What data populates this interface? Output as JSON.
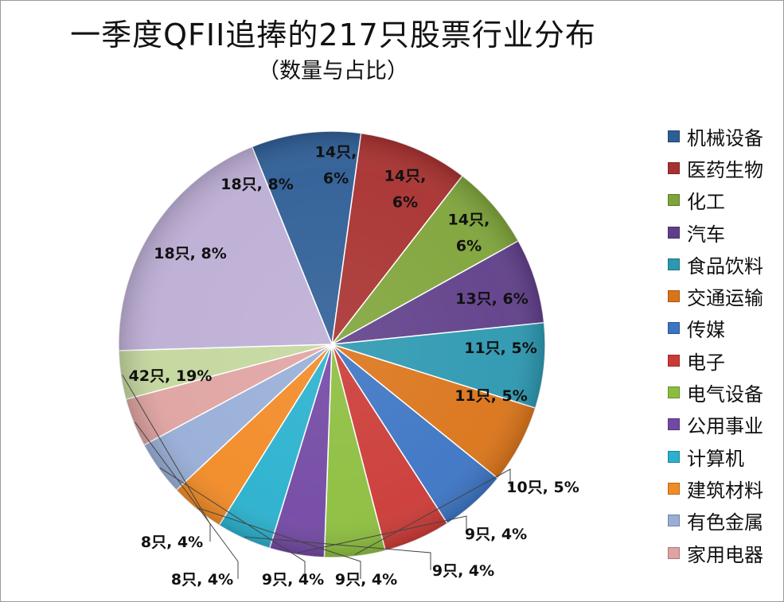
{
  "page": {
    "title": "一季度QFII追捧的217只股票行业分布",
    "subtitle": "（数量与占比）"
  },
  "chart_data": {
    "type": "pie",
    "title": "一季度QFII追捧的217只股票行业分布",
    "subtitle": "（数量与占比）",
    "total": 217,
    "legend_position": "right",
    "slices": [
      {
        "name": "机械设备",
        "value": 18,
        "label": "18只, 8%",
        "color": "#2E5E96"
      },
      {
        "name": "医药生物",
        "value": 18,
        "label": "18只, 8%",
        "color": "#A8312F"
      },
      {
        "name": "化工",
        "value": 14,
        "label": "14只,\n6%",
        "color": "#7FA43A"
      },
      {
        "name": "汽车",
        "value": 14,
        "label": "14只,\n6%",
        "color": "#603F8A"
      },
      {
        "name": "食品饮料",
        "value": 14,
        "label": "14只,\n6%",
        "color": "#2C98B1"
      },
      {
        "name": "交通运输",
        "value": 13,
        "label": "13只, 6%",
        "color": "#DB7419"
      },
      {
        "name": "传媒",
        "value": 11,
        "label": "11只, 5%",
        "color": "#3C74C4"
      },
      {
        "name": "电子",
        "value": 11,
        "label": "11只, 5%",
        "color": "#CB3A36"
      },
      {
        "name": "电气设备",
        "value": 10,
        "label": "10只, 5%",
        "color": "#8CBE3E"
      },
      {
        "name": "公用事业",
        "value": 9,
        "label": "9只, 4%",
        "color": "#7248A4"
      },
      {
        "name": "计算机",
        "value": 9,
        "label": "9只, 4%",
        "color": "#29B1CE"
      },
      {
        "name": "建筑材料",
        "value": 9,
        "label": "9只, 4%",
        "color": "#F28A25"
      },
      {
        "name": "有色金属",
        "value": 9,
        "label": "9只, 4%",
        "color": "#98AED7"
      },
      {
        "name": "家用电器",
        "value": 8,
        "label": "8只, 4%",
        "color": "#DFA3A1"
      },
      {
        "name": "",
        "value": 8,
        "label": "8只, 4%",
        "color": "#C3D79D"
      },
      {
        "name": "",
        "value": 42,
        "label": "42只, 19%",
        "color": "#BDAED5"
      }
    ],
    "legend": [
      "机械设备",
      "医药生物",
      "化工",
      "汽车",
      "食品饮料",
      "交通运输",
      "传媒",
      "电子",
      "电气设备",
      "公用事业",
      "计算机",
      "建筑材料",
      "有色金属",
      "家用电器"
    ]
  }
}
